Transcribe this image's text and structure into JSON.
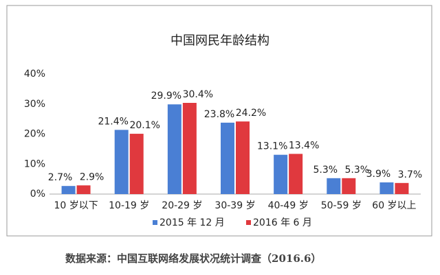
{
  "chart_data": {
    "type": "bar",
    "title": "中国网民年龄结构",
    "categories": [
      "10 岁以下",
      "10-19 岁",
      "20-29 岁",
      "30-39 岁",
      "40-49 岁",
      "50-59 岁",
      "60 岁以上"
    ],
    "series": [
      {
        "name": "2015 年 12 月",
        "color": "#4a7fd4",
        "values": [
          2.7,
          21.4,
          29.9,
          23.8,
          13.1,
          5.3,
          3.9
        ],
        "value_labels": [
          "2.7%",
          "21.4%",
          "29.9%",
          "23.8%",
          "13.1%",
          "5.3%",
          "3.9%"
        ]
      },
      {
        "name": "2016 年 6 月",
        "color": "#e0393e",
        "values": [
          2.9,
          20.1,
          30.4,
          24.2,
          13.4,
          5.3,
          3.7
        ],
        "value_labels": [
          "2.9%",
          "20.1%",
          "30.4%",
          "24.2%",
          "13.4%",
          "5.3%",
          "3.7%"
        ]
      }
    ],
    "ylim": [
      0,
      40
    ],
    "yticks": [
      {
        "value": 0,
        "label": "0%"
      },
      {
        "value": 10,
        "label": "10%"
      },
      {
        "value": 20,
        "label": "20%"
      },
      {
        "value": 30,
        "label": "30%"
      },
      {
        "value": 40,
        "label": "40%"
      }
    ],
    "grid": false,
    "source": "数据来源：中国互联网络发展状况统计调查（2016.6）"
  }
}
